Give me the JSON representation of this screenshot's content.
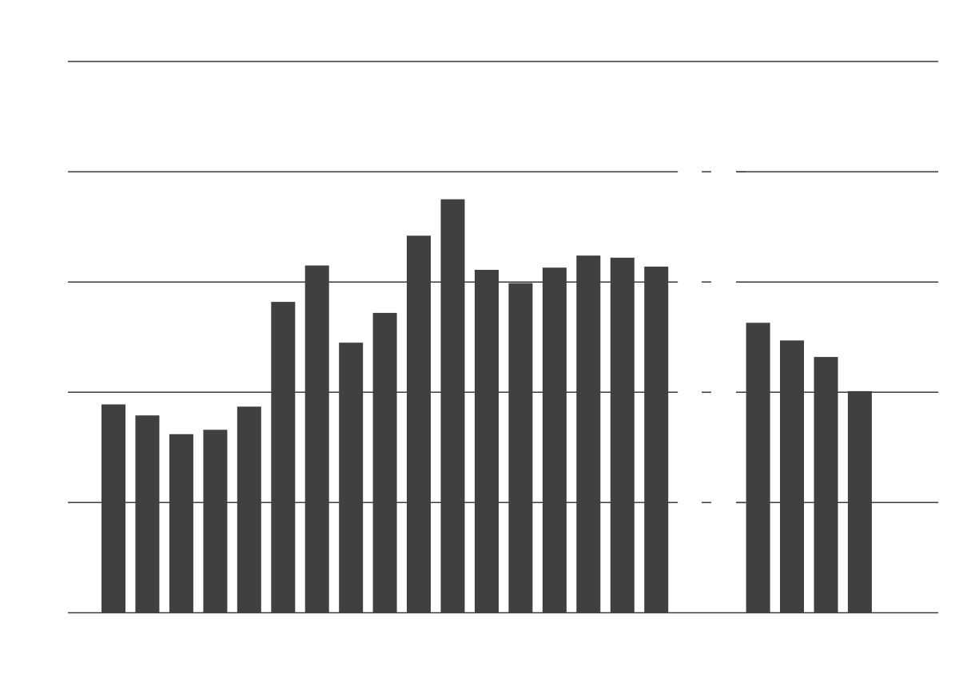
{
  "chart_data": {
    "type": "bar",
    "title": "",
    "xlabel": "",
    "ylabel": "",
    "ylim": [
      0,
      5
    ],
    "gridlines": [
      0,
      1,
      2,
      3,
      4,
      5
    ],
    "grid": true,
    "series": [
      {
        "values": [
          1.89,
          1.79,
          1.62,
          1.66,
          1.87,
          2.82,
          3.15,
          2.45,
          2.72,
          3.42,
          3.75,
          3.11,
          2.99,
          3.13,
          3.24,
          3.22,
          3.14,
          null,
          null,
          2.63,
          2.47,
          2.32,
          2.01
        ]
      }
    ],
    "legend": "none",
    "gap_after_index": 16
  },
  "colors": {
    "bar": "#404040",
    "grid": "#3a3a3a",
    "background": "#ffffff"
  }
}
